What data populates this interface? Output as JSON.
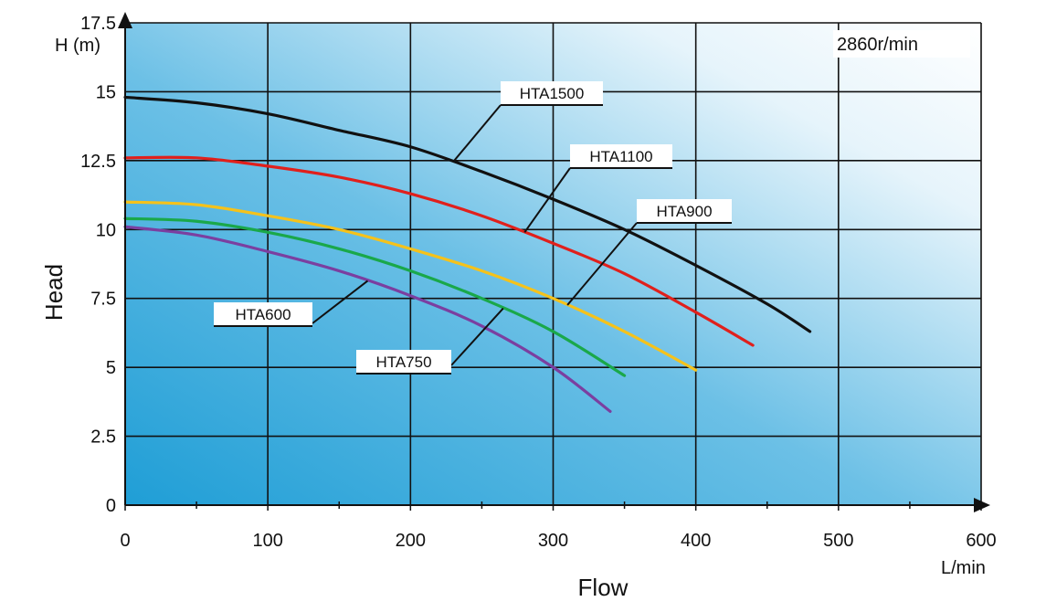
{
  "chart_data": {
    "type": "line",
    "xlabel": "Flow",
    "x_unit": "L/min",
    "ylabel": "Head",
    "y_unit": "H (m)",
    "xlim": [
      0,
      600
    ],
    "ylim": [
      0,
      17.5
    ],
    "x_ticks": [
      "0",
      "100",
      "200",
      "300",
      "400",
      "500",
      "600"
    ],
    "y_ticks": [
      "0",
      "2.5",
      "5",
      "7.5",
      "10",
      "12.5",
      "15",
      "17.5"
    ],
    "annotation": "2860r/min",
    "grid": true,
    "series": [
      {
        "name": "HTA1500",
        "color": "#111111",
        "x": [
          0,
          50,
          100,
          150,
          200,
          250,
          300,
          350,
          400,
          450,
          480
        ],
        "y": [
          14.8,
          14.6,
          14.2,
          13.6,
          13.0,
          12.1,
          11.1,
          10.0,
          8.7,
          7.3,
          6.3
        ]
      },
      {
        "name": "HTA1100",
        "color": "#e0201c",
        "x": [
          0,
          50,
          100,
          150,
          200,
          250,
          300,
          350,
          400,
          440
        ],
        "y": [
          12.6,
          12.6,
          12.3,
          11.9,
          11.3,
          10.5,
          9.5,
          8.4,
          7.0,
          5.8
        ]
      },
      {
        "name": "HTA900",
        "color": "#f5c21b",
        "x": [
          0,
          50,
          100,
          150,
          200,
          250,
          300,
          350,
          400
        ],
        "y": [
          11.0,
          10.9,
          10.5,
          10.0,
          9.3,
          8.5,
          7.5,
          6.3,
          4.9
        ]
      },
      {
        "name": "HTA750",
        "color": "#1aa84a",
        "x": [
          0,
          50,
          100,
          150,
          200,
          250,
          300,
          350
        ],
        "y": [
          10.4,
          10.3,
          9.9,
          9.3,
          8.5,
          7.5,
          6.3,
          4.7
        ]
      },
      {
        "name": "HTA600",
        "color": "#7b3fa0",
        "x": [
          0,
          50,
          100,
          150,
          200,
          250,
          300,
          340
        ],
        "y": [
          10.1,
          9.8,
          9.2,
          8.5,
          7.6,
          6.5,
          5.0,
          3.4
        ]
      }
    ]
  }
}
